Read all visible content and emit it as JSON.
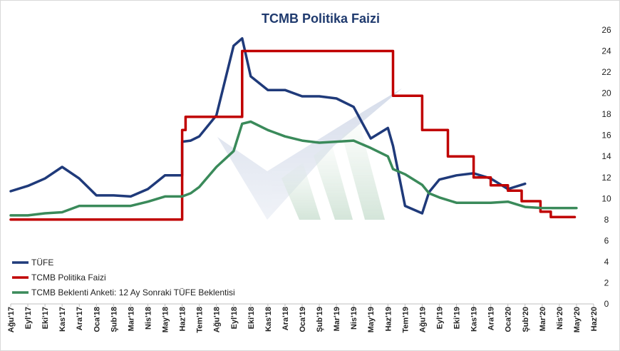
{
  "chart_data": {
    "type": "line",
    "title": "TCMB Politika Faizi",
    "xlabel": "",
    "ylabel": "",
    "ylim": [
      0,
      26
    ],
    "yticks": [
      0,
      2,
      4,
      6,
      8,
      10,
      12,
      14,
      16,
      18,
      20,
      22,
      24,
      26
    ],
    "y_axis_position": "right",
    "grid": false,
    "legend_position": "bottom-left",
    "categories": [
      "Ağu'17",
      "Eyl'17",
      "Eki'17",
      "Kas'17",
      "Ara'17",
      "Oca'18",
      "Şub'18",
      "Mar'18",
      "Nis'18",
      "May'18",
      "Haz'18",
      "Tem'18",
      "Ağu'18",
      "Eyl'18",
      "Eki'18",
      "Kas'18",
      "Ara'18",
      "Oca'19",
      "Şub'19",
      "Mar'19",
      "Nis'19",
      "May'19",
      "Haz'19",
      "Tem'19",
      "Ağu'19",
      "Eyl'19",
      "Eki'19",
      "Kas'19",
      "Ara'19",
      "Oca'20",
      "Şub'20",
      "Mar'20",
      "Nis'20",
      "May'20",
      "Haz'20"
    ],
    "series": [
      {
        "name": "TÜFE",
        "color": "#1f3a7a",
        "points": [
          [
            0,
            10.7
          ],
          [
            1,
            11.2
          ],
          [
            2,
            11.9
          ],
          [
            3,
            13.0
          ],
          [
            4,
            11.9
          ],
          [
            5,
            10.3
          ],
          [
            6,
            10.3
          ],
          [
            7,
            10.2
          ],
          [
            8,
            10.9
          ],
          [
            9,
            12.2
          ],
          [
            10,
            12.2
          ],
          [
            10,
            15.4
          ],
          [
            10.5,
            15.5
          ],
          [
            11,
            15.9
          ],
          [
            12,
            17.9
          ],
          [
            13,
            24.5
          ],
          [
            13.5,
            25.2
          ],
          [
            14,
            21.6
          ],
          [
            15,
            20.3
          ],
          [
            16,
            20.3
          ],
          [
            17,
            19.7
          ],
          [
            18,
            19.7
          ],
          [
            19,
            19.5
          ],
          [
            20,
            18.7
          ],
          [
            21,
            15.7
          ],
          [
            22,
            16.7
          ],
          [
            22.3,
            15.0
          ],
          [
            23,
            9.3
          ],
          [
            24,
            8.6
          ],
          [
            24.4,
            10.6
          ],
          [
            25,
            11.8
          ],
          [
            26,
            12.2
          ],
          [
            27,
            12.4
          ],
          [
            28,
            11.9
          ],
          [
            29,
            10.9
          ],
          [
            30,
            11.4
          ]
        ]
      },
      {
        "name": "TCMB Politika Faizi",
        "color": "#c00000",
        "step_values": [
          8.0,
          8.0,
          8.0,
          8.0,
          8.0,
          8.0,
          8.0,
          8.0,
          8.0,
          8.0,
          17.75,
          17.75,
          17.75,
          17.75,
          24.0,
          24.0,
          24.0,
          24.0,
          24.0,
          24.0,
          24.0,
          24.0,
          24.0,
          24.0,
          19.75,
          19.75,
          16.5,
          16.5,
          14.0,
          14.0,
          12.0,
          12.0,
          11.25,
          11.25,
          10.75,
          9.75,
          9.75,
          8.75,
          8.25,
          8.25
        ],
        "points": [
          [
            0,
            8.0
          ],
          [
            10,
            8.0
          ],
          [
            10,
            16.5
          ],
          [
            10.2,
            16.5
          ],
          [
            10.2,
            17.75
          ],
          [
            13.5,
            17.75
          ],
          [
            13.5,
            24.0
          ],
          [
            22.3,
            24.0
          ],
          [
            22.3,
            19.75
          ],
          [
            23.0,
            19.75
          ],
          [
            24.0,
            19.75
          ],
          [
            24.0,
            16.5
          ],
          [
            25.5,
            16.5
          ],
          [
            25.5,
            14.0
          ],
          [
            27.0,
            14.0
          ],
          [
            27.0,
            12.0
          ],
          [
            28.0,
            12.0
          ],
          [
            28.0,
            11.25
          ],
          [
            29.0,
            11.25
          ],
          [
            29.0,
            10.75
          ],
          [
            29.8,
            10.75
          ],
          [
            29.8,
            9.75
          ],
          [
            30.9,
            9.75
          ],
          [
            30.9,
            8.75
          ],
          [
            31.5,
            8.75
          ],
          [
            31.5,
            8.25
          ],
          [
            32.9,
            8.25
          ]
        ]
      },
      {
        "name": "TCMB Beklenti Anketi: 12 Ay Sonraki TÜFE Beklentisi",
        "color": "#3a8a5a",
        "points": [
          [
            0,
            8.4
          ],
          [
            1,
            8.4
          ],
          [
            2,
            8.6
          ],
          [
            3,
            8.7
          ],
          [
            4,
            9.3
          ],
          [
            5,
            9.3
          ],
          [
            6,
            9.3
          ],
          [
            7,
            9.3
          ],
          [
            8,
            9.7
          ],
          [
            9,
            10.2
          ],
          [
            10,
            10.2
          ],
          [
            10.5,
            10.5
          ],
          [
            11,
            11.1
          ],
          [
            12,
            13.0
          ],
          [
            13,
            14.5
          ],
          [
            13.5,
            17.1
          ],
          [
            14,
            17.3
          ],
          [
            15,
            16.5
          ],
          [
            16,
            15.9
          ],
          [
            17,
            15.5
          ],
          [
            18,
            15.3
          ],
          [
            19,
            15.4
          ],
          [
            20,
            15.5
          ],
          [
            21,
            14.8
          ],
          [
            22,
            14.0
          ],
          [
            22.3,
            12.8
          ],
          [
            23,
            12.3
          ],
          [
            24,
            11.3
          ],
          [
            24.4,
            10.5
          ],
          [
            25,
            10.1
          ],
          [
            26,
            9.6
          ],
          [
            27,
            9.6
          ],
          [
            28,
            9.6
          ],
          [
            29,
            9.7
          ],
          [
            30,
            9.2
          ],
          [
            31,
            9.1
          ],
          [
            32,
            9.1
          ],
          [
            33,
            9.1
          ]
        ]
      }
    ]
  }
}
